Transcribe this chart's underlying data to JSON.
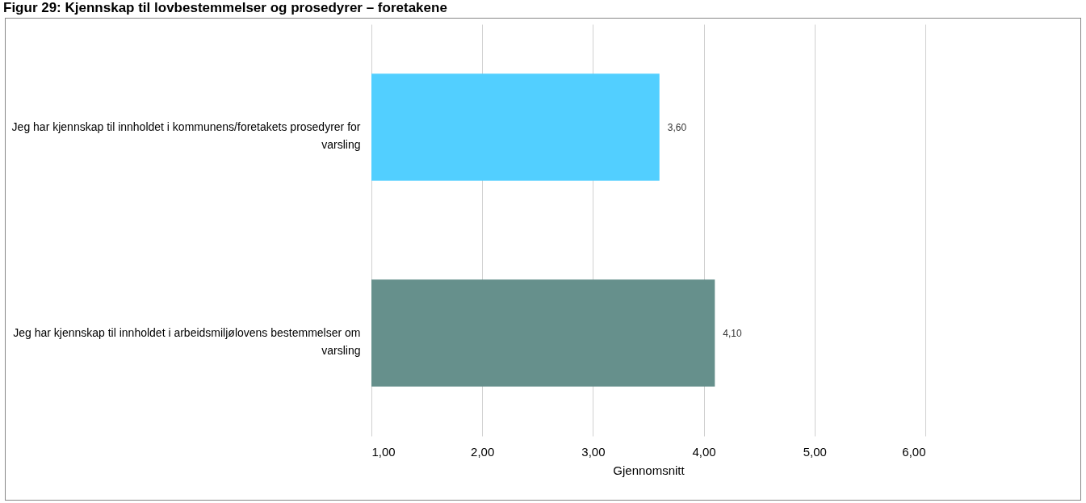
{
  "chart_data": {
    "type": "bar",
    "orientation": "horizontal",
    "title": "Figur 29: Kjennskap til lovbestemmelser og prosedyrer – foretakene",
    "xlabel": "Gjennomsnitt",
    "categories": [
      "Jeg har kjennskap til innholdet i kommunens/foretakets prosedyrer for varsling",
      "Jeg har kjennskap til innholdet i arbeidsmiljølovens bestemmelser om varsling"
    ],
    "values": [
      3.6,
      4.1
    ],
    "colors": [
      "#52cfff",
      "#66908c"
    ],
    "value_labels": [
      "3,60",
      "4,10"
    ],
    "xlim": [
      1,
      6
    ],
    "xticks": [
      {
        "value": 1,
        "label": "1,00"
      },
      {
        "value": 2,
        "label": "2,00"
      },
      {
        "value": 3,
        "label": "3,00"
      },
      {
        "value": 4,
        "label": "4,00"
      },
      {
        "value": 5,
        "label": "5,00"
      },
      {
        "value": 6,
        "label": "6,00"
      }
    ],
    "grid": "x"
  }
}
